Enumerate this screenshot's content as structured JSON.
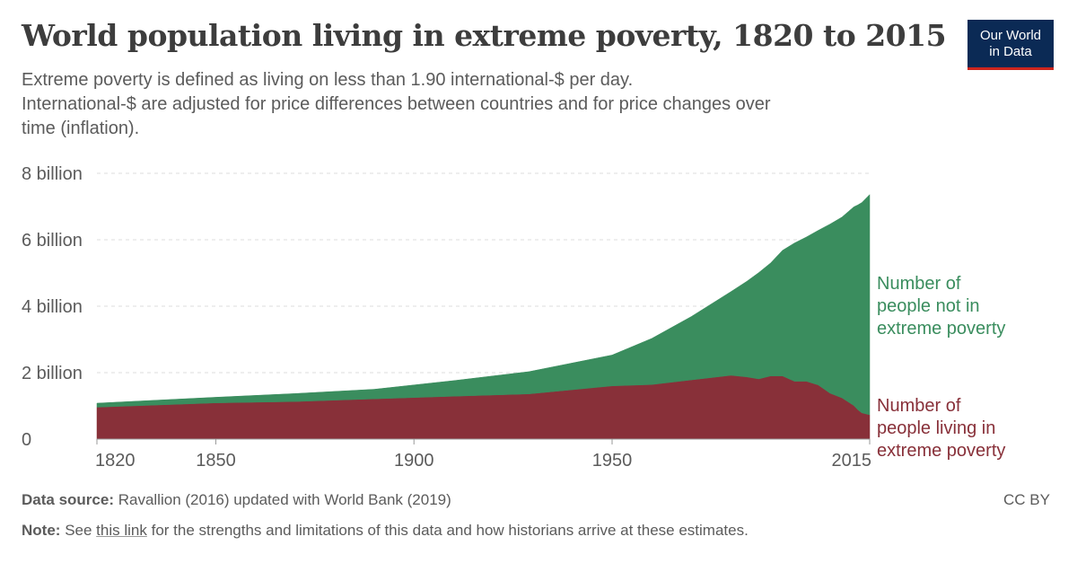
{
  "header": {
    "title": "World population living in extreme poverty, 1820 to 2015",
    "subtitle_lines": [
      "Extreme poverty is defined as living on less than 1.90 international-$ per day.",
      "International-$ are adjusted for price differences between countries and for price changes over",
      "time (inflation)."
    ]
  },
  "logo": {
    "line1": "Our World",
    "line2": "in Data",
    "bg_color": "#0b2a55",
    "accent_color": "#ce261e"
  },
  "footer": {
    "source_label": "Data source:",
    "source_text": "Ravallion (2016) updated with World Bank (2019)",
    "license": "CC BY",
    "note_label": "Note:",
    "note_pre": "See",
    "note_link": "this link",
    "note_post": "for the strengths and limitations of this data and how historians arrive at these estimates."
  },
  "chart_data": {
    "type": "area",
    "stacked": true,
    "title": "World population living in extreme poverty, 1820 to 2015",
    "xlabel": "",
    "ylabel": "",
    "xlim": [
      1820,
      2015
    ],
    "ylim": [
      0,
      8
    ],
    "y_unit": "billion",
    "grid": true,
    "y_ticks": [
      {
        "value": 0,
        "label": "0"
      },
      {
        "value": 2,
        "label": "2 billion"
      },
      {
        "value": 4,
        "label": "4 billion"
      },
      {
        "value": 6,
        "label": "6 billion"
      },
      {
        "value": 8,
        "label": "8 billion"
      }
    ],
    "x_ticks": [
      {
        "value": 1820,
        "label": "1820"
      },
      {
        "value": 1850,
        "label": "1850"
      },
      {
        "value": 1900,
        "label": "1900"
      },
      {
        "value": 1950,
        "label": "1950"
      },
      {
        "value": 2015,
        "label": "2015"
      }
    ],
    "x": [
      1820,
      1850,
      1870,
      1890,
      1910,
      1929,
      1950,
      1960,
      1970,
      1980,
      1984,
      1987,
      1990,
      1993,
      1996,
      1999,
      2002,
      2005,
      2008,
      2011,
      2012,
      2013,
      2015
    ],
    "series": [
      {
        "name": "Number of people living in extreme poverty",
        "label_lines": [
          "Number of",
          "people living in",
          "extreme poverty"
        ],
        "color": "#883039",
        "values": [
          0.96,
          1.09,
          1.13,
          1.21,
          1.29,
          1.36,
          1.6,
          1.64,
          1.78,
          1.92,
          1.87,
          1.81,
          1.9,
          1.9,
          1.74,
          1.74,
          1.63,
          1.38,
          1.24,
          1.01,
          0.88,
          0.79,
          0.73
        ]
      },
      {
        "name": "Number of people not in extreme poverty",
        "label_lines": [
          "Number of",
          "people not in",
          "extreme poverty"
        ],
        "color": "#3a8d5e",
        "values": [
          0.12,
          0.17,
          0.24,
          0.29,
          0.47,
          0.67,
          0.93,
          1.39,
          1.91,
          2.52,
          2.88,
          3.2,
          3.4,
          3.78,
          4.16,
          4.34,
          4.65,
          5.09,
          5.44,
          5.98,
          6.17,
          6.33,
          6.63
        ]
      }
    ]
  }
}
